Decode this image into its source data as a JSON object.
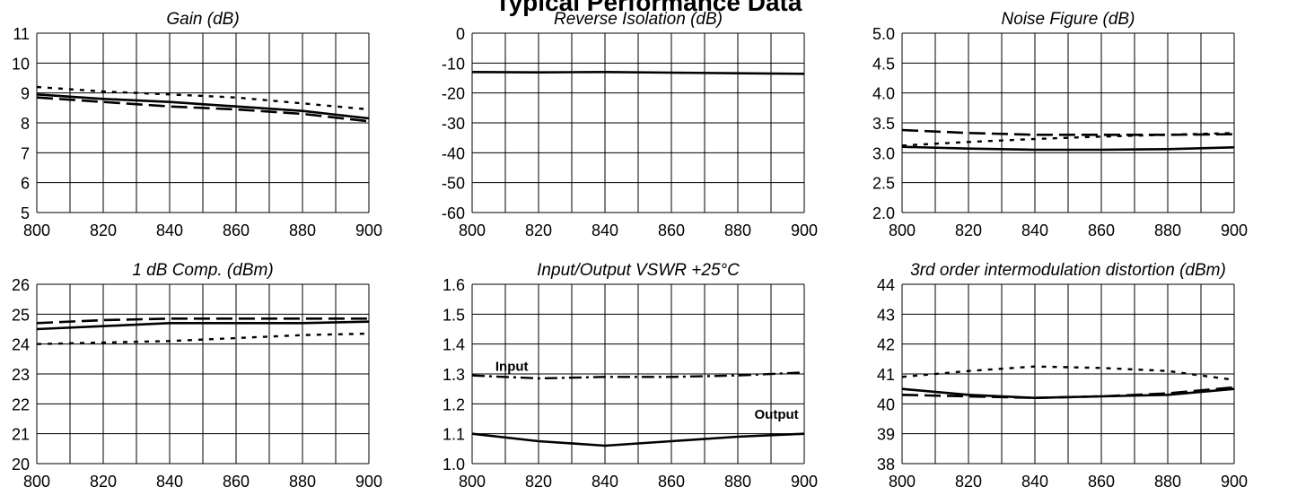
{
  "page": {
    "title": "Typical Performance Data"
  },
  "chart_data": [
    {
      "type": "line",
      "title": "Gain (dB)",
      "xlim": [
        800,
        900
      ],
      "ylim": [
        5,
        11
      ],
      "xticks": [
        800,
        820,
        840,
        860,
        880,
        900
      ],
      "yticks": [
        5,
        6,
        7,
        8,
        9,
        10,
        11
      ],
      "x_grid_step": 10,
      "y_grid_step": 1,
      "series": [
        {
          "style": "solid",
          "x": [
            800,
            820,
            840,
            860,
            880,
            900
          ],
          "y": [
            8.95,
            8.8,
            8.7,
            8.55,
            8.4,
            8.15
          ]
        },
        {
          "style": "dashed",
          "x": [
            800,
            820,
            840,
            860,
            880,
            900
          ],
          "y": [
            8.85,
            8.7,
            8.55,
            8.45,
            8.3,
            8.05
          ]
        },
        {
          "style": "dotted",
          "x": [
            800,
            820,
            840,
            860,
            880,
            900
          ],
          "y": [
            9.2,
            9.05,
            8.95,
            8.85,
            8.65,
            8.45
          ]
        }
      ],
      "annotations": []
    },
    {
      "type": "line",
      "title": "Reverse Isolation (dB)",
      "xlim": [
        800,
        900
      ],
      "ylim": [
        -60,
        0
      ],
      "xticks": [
        800,
        820,
        840,
        860,
        880,
        900
      ],
      "yticks": [
        -60,
        -50,
        -40,
        -30,
        -20,
        -10,
        0
      ],
      "x_grid_step": 10,
      "y_grid_step": 10,
      "series": [
        {
          "style": "solid",
          "x": [
            800,
            820,
            840,
            860,
            880,
            900
          ],
          "y": [
            -13.0,
            -13.1,
            -13.0,
            -13.2,
            -13.4,
            -13.6
          ]
        }
      ],
      "annotations": []
    },
    {
      "type": "line",
      "title": "Noise Figure (dB)",
      "xlim": [
        800,
        900
      ],
      "ylim": [
        2.0,
        5.0
      ],
      "xticks": [
        800,
        820,
        840,
        860,
        880,
        900
      ],
      "yticks": [
        2.0,
        2.5,
        3.0,
        3.5,
        4.0,
        4.5,
        5.0
      ],
      "x_grid_step": 10,
      "y_grid_step": 0.5,
      "series": [
        {
          "style": "solid",
          "x": [
            800,
            820,
            840,
            860,
            880,
            900
          ],
          "y": [
            3.1,
            3.07,
            3.05,
            3.05,
            3.06,
            3.09
          ]
        },
        {
          "style": "dashed",
          "x": [
            800,
            820,
            840,
            860,
            880,
            900
          ],
          "y": [
            3.38,
            3.33,
            3.3,
            3.3,
            3.3,
            3.31
          ]
        },
        {
          "style": "dotted",
          "x": [
            800,
            820,
            840,
            860,
            880,
            900
          ],
          "y": [
            3.12,
            3.18,
            3.23,
            3.27,
            3.3,
            3.33
          ]
        }
      ],
      "annotations": []
    },
    {
      "type": "line",
      "title": "1 dB Comp. (dBm)",
      "xlim": [
        800,
        900
      ],
      "ylim": [
        20,
        26
      ],
      "xticks": [
        800,
        820,
        840,
        860,
        880,
        900
      ],
      "yticks": [
        20,
        21,
        22,
        23,
        24,
        25,
        26
      ],
      "x_grid_step": 10,
      "y_grid_step": 1,
      "series": [
        {
          "style": "solid",
          "x": [
            800,
            820,
            840,
            860,
            880,
            900
          ],
          "y": [
            24.5,
            24.6,
            24.7,
            24.7,
            24.7,
            24.75
          ]
        },
        {
          "style": "dashed",
          "x": [
            800,
            820,
            840,
            860,
            880,
            900
          ],
          "y": [
            24.7,
            24.8,
            24.85,
            24.85,
            24.85,
            24.85
          ]
        },
        {
          "style": "dotted",
          "x": [
            800,
            820,
            840,
            860,
            880,
            900
          ],
          "y": [
            24.0,
            24.05,
            24.1,
            24.2,
            24.3,
            24.35
          ]
        }
      ],
      "annotations": []
    },
    {
      "type": "line",
      "title": "Input/Output VSWR +25°C",
      "xlim": [
        800,
        900
      ],
      "ylim": [
        1.0,
        1.6
      ],
      "xticks": [
        800,
        820,
        840,
        860,
        880,
        900
      ],
      "yticks": [
        1.0,
        1.1,
        1.2,
        1.3,
        1.4,
        1.5,
        1.6
      ],
      "x_grid_step": 10,
      "y_grid_step": 0.1,
      "series": [
        {
          "name": "Input",
          "style": "dashdot",
          "x": [
            800,
            820,
            840,
            860,
            880,
            900
          ],
          "y": [
            1.295,
            1.285,
            1.29,
            1.29,
            1.295,
            1.305
          ]
        },
        {
          "name": "Output",
          "style": "solid",
          "x": [
            800,
            820,
            840,
            860,
            880,
            900
          ],
          "y": [
            1.1,
            1.075,
            1.06,
            1.075,
            1.09,
            1.1
          ]
        }
      ],
      "annotations": [
        {
          "text": "Input",
          "x": 807,
          "y": 1.31
        },
        {
          "text": "Output",
          "x": 885,
          "y": 1.15
        }
      ]
    },
    {
      "type": "line",
      "title": "3rd order intermodulation distortion (dBm)",
      "xlim": [
        800,
        900
      ],
      "ylim": [
        38,
        44
      ],
      "xticks": [
        800,
        820,
        840,
        860,
        880,
        900
      ],
      "yticks": [
        38,
        39,
        40,
        41,
        42,
        43,
        44
      ],
      "x_grid_step": 10,
      "y_grid_step": 1,
      "series": [
        {
          "style": "solid",
          "x": [
            800,
            820,
            840,
            860,
            880,
            900
          ],
          "y": [
            40.5,
            40.3,
            40.2,
            40.25,
            40.3,
            40.5
          ]
        },
        {
          "style": "dashed",
          "x": [
            800,
            820,
            840,
            860,
            880,
            900
          ],
          "y": [
            40.3,
            40.25,
            40.2,
            40.25,
            40.35,
            40.55
          ]
        },
        {
          "style": "dotted",
          "x": [
            800,
            820,
            840,
            860,
            880,
            900
          ],
          "y": [
            40.9,
            41.1,
            41.25,
            41.2,
            41.1,
            40.8
          ]
        }
      ],
      "annotations": []
    }
  ]
}
